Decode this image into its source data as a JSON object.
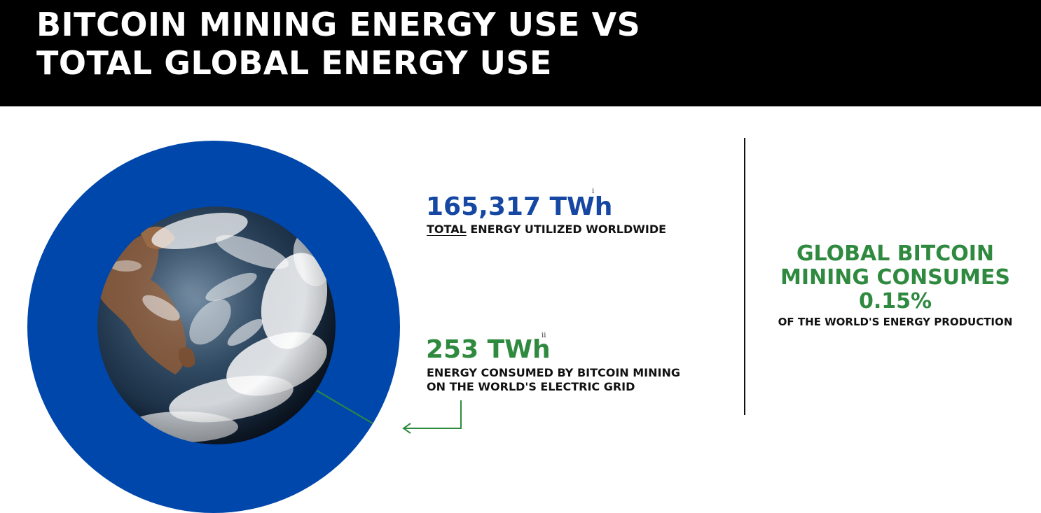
{
  "header": {
    "title_line1": "BITCOIN MINING ENERGY USE VS",
    "title_line2": "TOTAL GLOBAL ENERGY USE"
  },
  "graphic": {
    "total_circle_color": "#0047ab",
    "earth_image": "earth-globe",
    "pointer_color": "#2f8a3f"
  },
  "total_energy": {
    "value": "165,317 TWh",
    "footnote": "i",
    "caption_emphasis": "TOTAL",
    "caption_rest": " ENERGY UTILIZED WORLDWIDE"
  },
  "bitcoin_energy": {
    "value": "253 TWh",
    "footnote": "ii",
    "caption_line1": "ENERGY CONSUMED BY BITCOIN MINING",
    "caption_line2": "ON THE WORLD'S ELECTRIC GRID"
  },
  "summary": {
    "heading_line1": "GLOBAL BITCOIN",
    "heading_line2": "MINING CONSUMES",
    "percentage": "0.15%",
    "caption": "OF THE WORLD'S ENERGY PRODUCTION"
  },
  "colors": {
    "header_background": "#000000",
    "total_blue": "#1547a3",
    "bitcoin_green": "#2f8a3f"
  }
}
